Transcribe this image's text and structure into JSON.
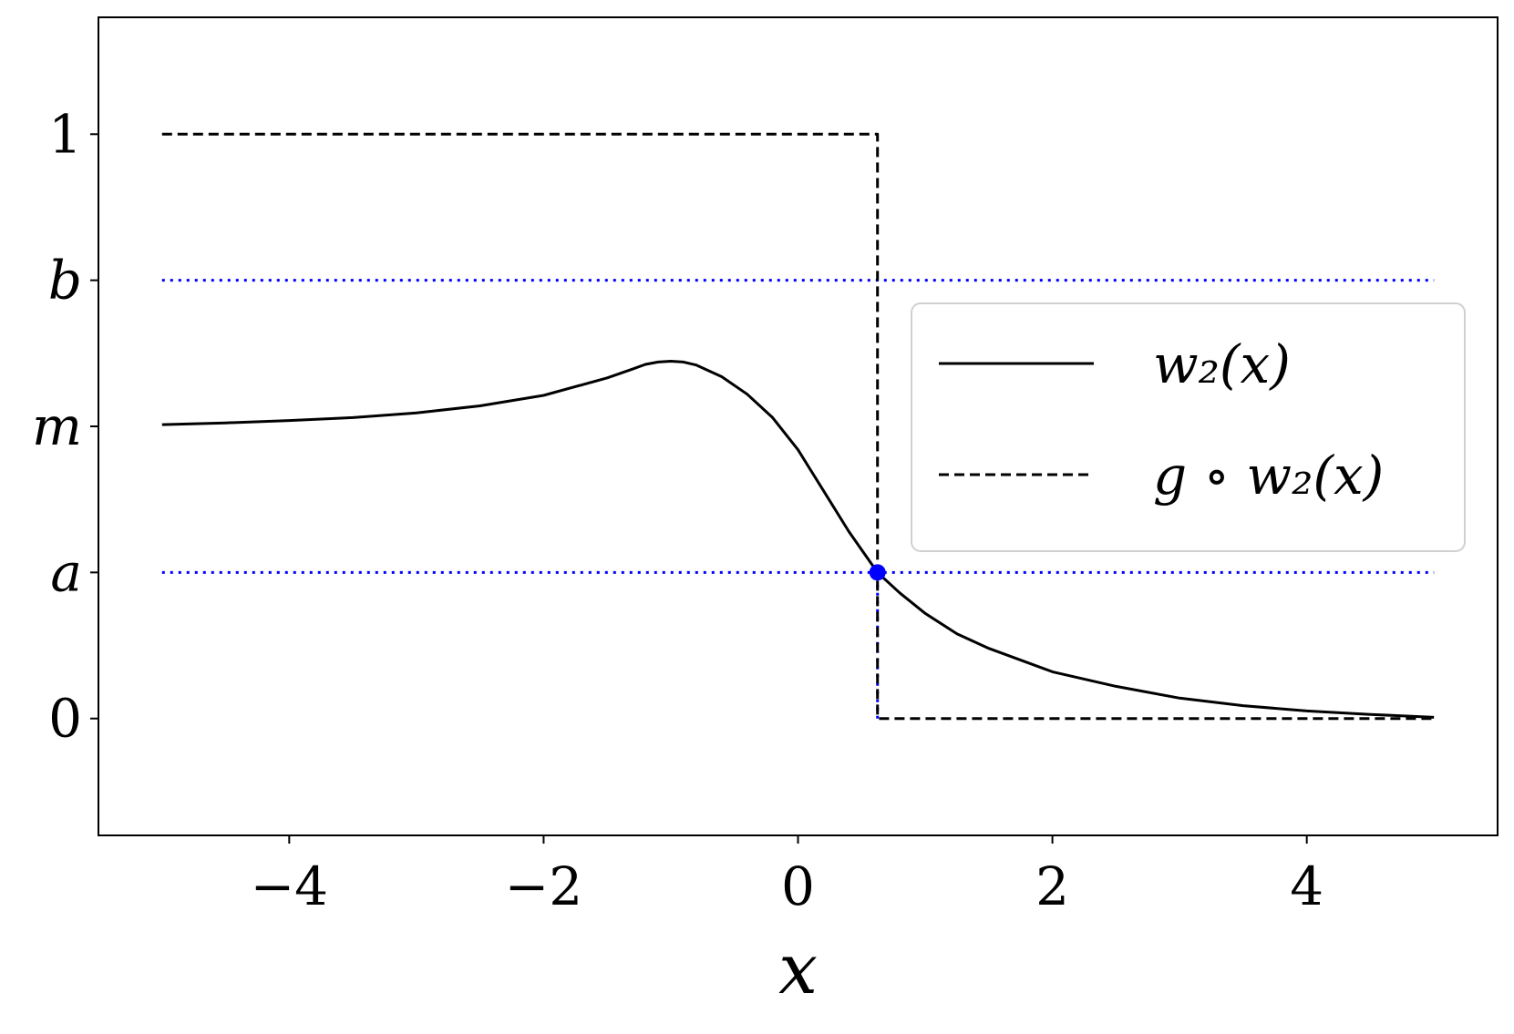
{
  "chart_data": {
    "type": "line",
    "xlabel": "x",
    "xlim": [
      -5.5,
      5.5
    ],
    "ylim": [
      -0.2,
      1.2
    ],
    "x_ticks": [
      {
        "value": -4,
        "label": "−4"
      },
      {
        "value": -2,
        "label": "−2"
      },
      {
        "value": 0,
        "label": "0"
      },
      {
        "value": 2,
        "label": "2"
      },
      {
        "value": 4,
        "label": "4"
      }
    ],
    "y_ticks": [
      {
        "value": 0,
        "label": "0",
        "italic": false
      },
      {
        "value": 0.25,
        "label": "a",
        "italic": true
      },
      {
        "value": 0.5,
        "label": "m",
        "italic": true
      },
      {
        "value": 0.75,
        "label": "b",
        "italic": true
      },
      {
        "value": 1,
        "label": "1",
        "italic": false
      }
    ],
    "grid": false,
    "legend_position": "right",
    "series": [
      {
        "name": "w₂(x)",
        "style": "solid",
        "color": "#000000",
        "x": [
          -5,
          -4.5,
          -4,
          -3.5,
          -3,
          -2.5,
          -2,
          -1.5,
          -1.3,
          -1.2,
          -1.1,
          -1.0,
          -0.9,
          -0.8,
          -0.6,
          -0.4,
          -0.2,
          0,
          0.2,
          0.4,
          0.625,
          0.8,
          1.0,
          1.25,
          1.5,
          2,
          2.5,
          3,
          3.5,
          4,
          4.5,
          5
        ],
        "y": [
          0.503,
          0.506,
          0.51,
          0.515,
          0.523,
          0.535,
          0.553,
          0.583,
          0.598,
          0.606,
          0.61,
          0.6115,
          0.61,
          0.605,
          0.585,
          0.555,
          0.515,
          0.46,
          0.39,
          0.32,
          0.25,
          0.215,
          0.18,
          0.145,
          0.12,
          0.08,
          0.055,
          0.035,
          0.022,
          0.013,
          0.007,
          0.002
        ]
      },
      {
        "name": "g ∘ w₂(x)",
        "style": "dashed",
        "color": "#000000",
        "x": [
          -5,
          0.625,
          0.625,
          5
        ],
        "y": [
          1,
          1,
          0,
          0
        ]
      }
    ],
    "reference_lines": [
      {
        "orientation": "horizontal",
        "y": 0.75,
        "xmin": -5,
        "xmax": 5,
        "style": "dotted",
        "color": "#0000ff"
      },
      {
        "orientation": "horizontal",
        "y": 0.25,
        "xmin": -5,
        "xmax": 5,
        "style": "dotted",
        "color": "#0000ff"
      },
      {
        "orientation": "vertical",
        "x": 0.625,
        "ymin": 0,
        "ymax": 0.25,
        "style": "dotted",
        "color": "#0000ff"
      }
    ],
    "marker": {
      "x": 0.625,
      "y": 0.25,
      "color": "#0000ff"
    }
  }
}
